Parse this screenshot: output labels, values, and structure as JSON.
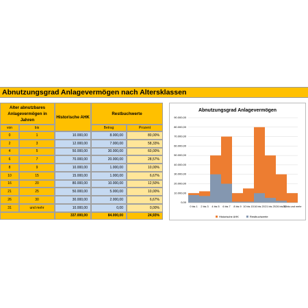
{
  "header": {
    "title": "Abnutzungsgrad Anlagevermögen nach Altersklassen"
  },
  "table": {
    "group_header": "Alter abnutzbares Anlagevermögen in Jahren",
    "columns": {
      "von": "von",
      "bis": "bis",
      "ahk": "Historische AHK",
      "rest": "Restbuchwerte",
      "betrag": "Betrag",
      "prozent": "Prozent"
    },
    "rows": [
      [
        "0",
        "1",
        "10.000,00",
        "8.000,00",
        "80,00%"
      ],
      [
        "2",
        "3",
        "12.000,00",
        "7.000,00",
        "58,33%"
      ],
      [
        "4",
        "5",
        "50.000,00",
        "30.000,00",
        "60,00%"
      ],
      [
        "6",
        "7",
        "70.000,00",
        "20.000,00",
        "28,57%"
      ],
      [
        "8",
        "9",
        "10.000,00",
        "1.000,00",
        "10,00%"
      ],
      [
        "10",
        "15",
        "15.000,00",
        "1.000,00",
        "6,67%"
      ],
      [
        "16",
        "20",
        "80.000,00",
        "10.000,00",
        "12,50%"
      ],
      [
        "21",
        "25",
        "50.000,00",
        "5.000,00",
        "10,00%"
      ],
      [
        "26",
        "30",
        "30.000,00",
        "2.000,00",
        "6,67%"
      ],
      [
        "31",
        "und mehr",
        "10.000,00",
        "0,00",
        "0,00%"
      ]
    ],
    "total": {
      "ahk": "337.000,00",
      "betrag": "84.000,00",
      "prozent": "24,93%"
    }
  },
  "chart_data": {
    "type": "bar",
    "title": "Abnutzungsgrad Anlagevermögen",
    "categories": [
      "0 bis 1",
      "2 bis 3",
      "4 bis 5",
      "6 bis 7",
      "8 bis 9",
      "10 bis 15",
      "16 bis 20",
      "21 bis 25",
      "26 bis 30",
      "31 bis und mehr"
    ],
    "series": [
      {
        "name": "Historische AHK",
        "color": "#ed7d31",
        "values": [
          10000,
          12000,
          50000,
          70000,
          10000,
          15000,
          80000,
          50000,
          30000,
          10000
        ]
      },
      {
        "name": "Restbuchwerte",
        "color": "#8497b0",
        "values": [
          8000,
          7000,
          30000,
          20000,
          1000,
          1000,
          10000,
          5000,
          2000,
          0
        ]
      }
    ],
    "ylim": [
      0,
      90000
    ],
    "yticks": [
      {
        "value": 0,
        "label": "0,00"
      },
      {
        "value": 10000,
        "label": "10.000,00"
      },
      {
        "value": 20000,
        "label": "20.000,00"
      },
      {
        "value": 30000,
        "label": "30.000,00"
      },
      {
        "value": 40000,
        "label": "40.000,00"
      },
      {
        "value": 50000,
        "label": "50.000,00"
      },
      {
        "value": 60000,
        "label": "60.000,00"
      },
      {
        "value": 70000,
        "label": "70.000,00"
      },
      {
        "value": 80000,
        "label": "80.000,00"
      },
      {
        "value": 90000,
        "label": "90.000,00"
      }
    ],
    "grid": true,
    "overlap": true,
    "legend": "bottom"
  }
}
